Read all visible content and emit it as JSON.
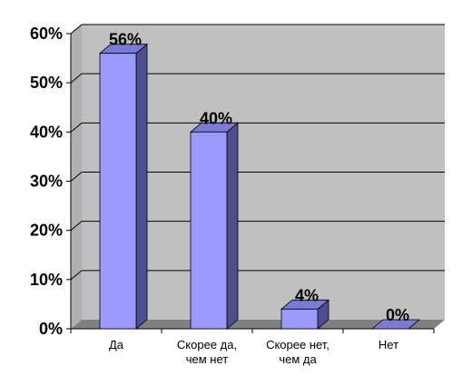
{
  "chart_data": {
    "type": "bar",
    "categories": [
      [
        "Да"
      ],
      [
        "Скорее да,",
        "чем нет"
      ],
      [
        "Скорее нет,",
        "чем да"
      ],
      [
        "Нет"
      ]
    ],
    "values": [
      56,
      40,
      4,
      0
    ],
    "data_labels": [
      "56%",
      "40%",
      "4%",
      "0%"
    ],
    "y_ticks": [
      "0%",
      "10%",
      "20%",
      "30%",
      "40%",
      "50%",
      "60%"
    ],
    "ylim": [
      0,
      60
    ],
    "grid": true,
    "legend": "none",
    "colors": {
      "bar_front": "#9999ff",
      "bar_side": "#4d4d8f",
      "bar_top": "#7b7bd6",
      "wall": "#c0c0c0",
      "floor": "#808080"
    }
  }
}
